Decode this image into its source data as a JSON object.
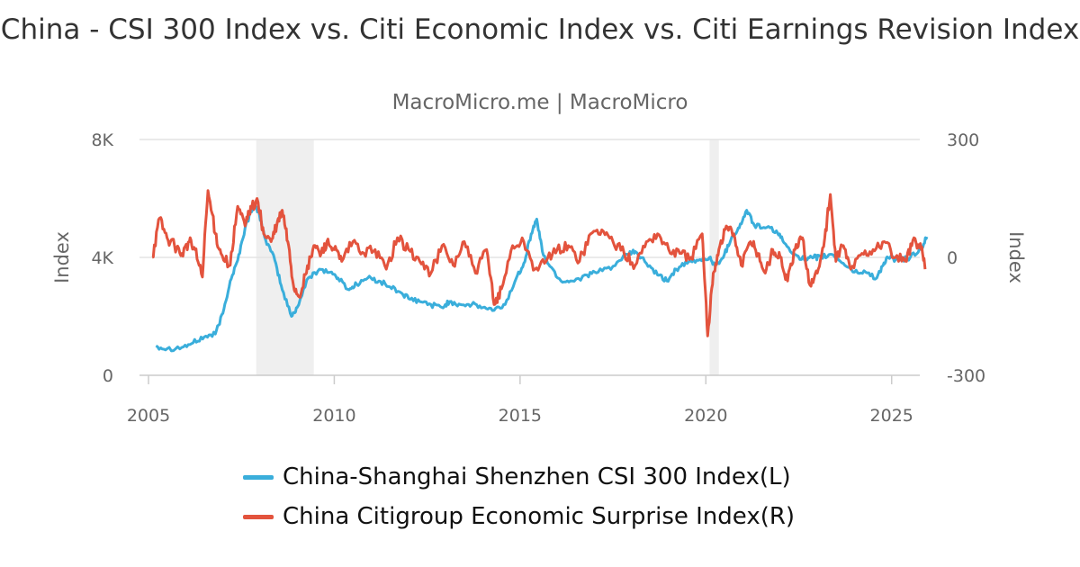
{
  "chart_data": {
    "type": "line",
    "title": "China - CSI 300 Index vs. Citi Economic Index vs. Citi Earnings Revision Index",
    "subtitle": "MacroMicro.me | MacroMicro",
    "left_axis": {
      "label": "Index",
      "range": [
        0,
        8000
      ],
      "ticks": [
        0,
        4000,
        8000
      ],
      "tick_labels": [
        "0",
        "4K",
        "8K"
      ]
    },
    "right_axis": {
      "label": "Index",
      "range": [
        -300,
        300
      ],
      "ticks": [
        -300,
        0,
        300
      ],
      "tick_labels": [
        "-300",
        "0",
        "300"
      ]
    },
    "x_axis": {
      "range": [
        2005,
        2026.0
      ],
      "ticks": [
        2005,
        2010,
        2015,
        2020,
        2025
      ],
      "tick_labels": [
        "2005",
        "2010",
        "2015",
        "2020",
        "2025"
      ]
    },
    "recession_bands": [
      [
        2007.9,
        2009.45
      ],
      [
        2020.1,
        2020.35
      ]
    ],
    "series": [
      {
        "name": "China-Shanghai Shenzhen CSI 300 Index(L)",
        "axis": "left",
        "color": "#3aaedb",
        "x": [
          2005.2,
          2005.5,
          2005.9,
          2006.2,
          2006.5,
          2006.8,
          2007.0,
          2007.2,
          2007.4,
          2007.6,
          2007.8,
          2007.95,
          2008.15,
          2008.4,
          2008.6,
          2008.85,
          2009.0,
          2009.3,
          2009.6,
          2009.9,
          2010.1,
          2010.4,
          2010.6,
          2010.9,
          2011.2,
          2011.5,
          2011.8,
          2012.0,
          2012.3,
          2012.6,
          2012.9,
          2013.1,
          2013.4,
          2013.7,
          2014.0,
          2014.3,
          2014.6,
          2014.9,
          2015.1,
          2015.3,
          2015.45,
          2015.6,
          2015.8,
          2016.1,
          2016.4,
          2016.8,
          2017.1,
          2017.5,
          2017.9,
          2018.1,
          2018.4,
          2018.7,
          2018.95,
          2019.2,
          2019.5,
          2019.8,
          2020.1,
          2020.25,
          2020.5,
          2020.7,
          2020.9,
          2021.1,
          2021.3,
          2021.6,
          2021.9,
          2022.1,
          2022.4,
          2022.7,
          2022.9,
          2023.1,
          2023.4,
          2023.7,
          2024.0,
          2024.3,
          2024.6,
          2024.75,
          2024.9,
          2025.2,
          2025.5,
          2025.8,
          2025.95
        ],
        "values": [
          1000,
          900,
          950,
          1100,
          1300,
          1400,
          2100,
          3200,
          3900,
          5000,
          5700,
          5600,
          4600,
          3900,
          2900,
          2000,
          2300,
          3300,
          3600,
          3500,
          3300,
          2900,
          3100,
          3300,
          3200,
          3000,
          2800,
          2600,
          2500,
          2400,
          2300,
          2500,
          2400,
          2400,
          2300,
          2200,
          2400,
          3300,
          3800,
          4800,
          5300,
          4200,
          3700,
          3200,
          3200,
          3400,
          3500,
          3700,
          4100,
          4200,
          3800,
          3400,
          3200,
          3600,
          3800,
          3900,
          4000,
          3700,
          4100,
          4700,
          5000,
          5600,
          5100,
          5000,
          4900,
          4500,
          4100,
          3900,
          4000,
          4000,
          4100,
          3800,
          3500,
          3500,
          3300,
          3700,
          4000,
          3900,
          4000,
          4300,
          4700
        ]
      },
      {
        "name": "China Citigroup Economic Surprise Index(R)",
        "axis": "right",
        "color": "#e3533d",
        "x": [
          2005.1,
          2005.3,
          2005.5,
          2005.7,
          2005.9,
          2006.1,
          2006.25,
          2006.45,
          2006.6,
          2006.8,
          2006.95,
          2007.2,
          2007.4,
          2007.6,
          2007.75,
          2007.95,
          2008.1,
          2008.3,
          2008.45,
          2008.6,
          2008.75,
          2008.9,
          2009.05,
          2009.25,
          2009.45,
          2009.65,
          2009.8,
          2010.0,
          2010.2,
          2010.5,
          2010.8,
          2011.1,
          2011.4,
          2011.7,
          2012.0,
          2012.3,
          2012.6,
          2012.9,
          2013.2,
          2013.5,
          2013.8,
          2014.1,
          2014.3,
          2014.5,
          2014.8,
          2015.1,
          2015.4,
          2015.7,
          2016.0,
          2016.3,
          2016.6,
          2016.9,
          2017.2,
          2017.5,
          2017.8,
          2018.1,
          2018.4,
          2018.7,
          2019.0,
          2019.3,
          2019.6,
          2019.9,
          2020.05,
          2020.2,
          2020.35,
          2020.55,
          2020.75,
          2020.95,
          2021.2,
          2021.4,
          2021.6,
          2021.8,
          2022.0,
          2022.2,
          2022.4,
          2022.6,
          2022.8,
          2023.0,
          2023.2,
          2023.35,
          2023.5,
          2023.7,
          2023.9,
          2024.2,
          2024.5,
          2024.8,
          2025.1,
          2025.4,
          2025.6,
          2025.8,
          2025.9
        ],
        "values": [
          0,
          100,
          50,
          30,
          10,
          40,
          20,
          -50,
          170,
          60,
          10,
          -20,
          130,
          80,
          130,
          140,
          60,
          40,
          80,
          120,
          40,
          -70,
          -100,
          -40,
          30,
          10,
          40,
          20,
          -10,
          40,
          10,
          20,
          -30,
          50,
          20,
          -10,
          -40,
          30,
          -20,
          40,
          -40,
          20,
          -120,
          -80,
          30,
          40,
          -30,
          -10,
          20,
          30,
          -10,
          60,
          70,
          40,
          10,
          -20,
          40,
          60,
          20,
          10,
          0,
          60,
          -200,
          -40,
          20,
          80,
          60,
          -20,
          40,
          10,
          -40,
          20,
          0,
          -60,
          20,
          50,
          -70,
          -40,
          50,
          160,
          -10,
          30,
          -30,
          10,
          20,
          40,
          0,
          -10,
          50,
          20,
          -30
        ]
      }
    ]
  },
  "legend": [
    {
      "label": "China-Shanghai Shenzhen CSI 300 Index(L)",
      "color": "#3aaedb"
    },
    {
      "label": "China Citigroup Economic Surprise Index(R)",
      "color": "#e3533d"
    }
  ]
}
